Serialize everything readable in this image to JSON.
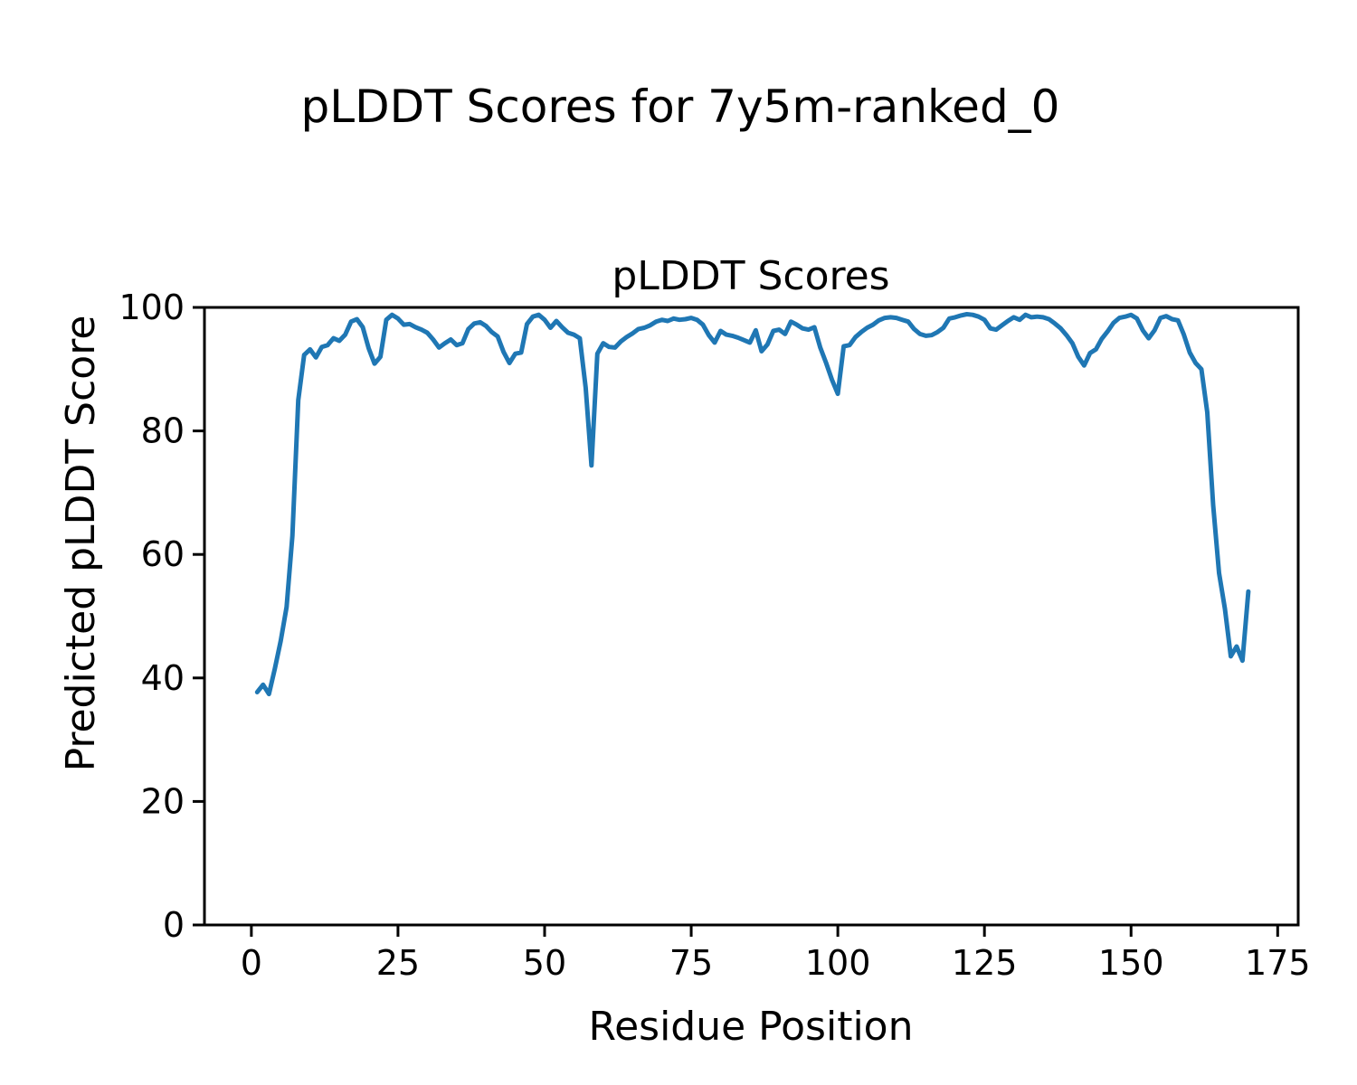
{
  "figure": {
    "suptitle": "pLDDT Scores for 7y5m-ranked_0",
    "background_color": "#ffffff"
  },
  "chart_data": {
    "type": "line",
    "title": "pLDDT Scores",
    "xlabel": "Residue Position",
    "ylabel": "Predicted pLDDT Score",
    "x_tick_labels": [
      0,
      25,
      50,
      75,
      100,
      125,
      150,
      175
    ],
    "y_tick_labels": [
      0,
      20,
      40,
      60,
      80,
      100
    ],
    "xlim": [
      -8,
      178.5
    ],
    "ylim": [
      0,
      100
    ],
    "grid": false,
    "legend": "none",
    "line_color": "#1f77b4",
    "axis_color": "#000000",
    "series": [
      {
        "name": "pLDDT",
        "x_start": 1,
        "x_step": 1,
        "values": [
          37.7,
          38.9,
          37.4,
          41.5,
          46.0,
          51.5,
          63.0,
          85.0,
          92.3,
          93.2,
          91.9,
          93.6,
          93.9,
          95.0,
          94.6,
          95.6,
          97.7,
          98.1,
          96.8,
          93.4,
          90.9,
          92.0,
          98.0,
          98.8,
          98.2,
          97.2,
          97.3,
          96.8,
          96.4,
          95.9,
          94.8,
          93.5,
          94.2,
          94.8,
          93.9,
          94.2,
          96.5,
          97.4,
          97.6,
          97.0,
          96.0,
          95.3,
          92.8,
          91.0,
          92.5,
          92.7,
          97.3,
          98.5,
          98.8,
          98.0,
          96.7,
          97.8,
          96.8,
          95.9,
          95.6,
          95.0,
          87.0,
          74.4,
          92.5,
          94.2,
          93.6,
          93.5,
          94.5,
          95.2,
          95.8,
          96.5,
          96.7,
          97.1,
          97.7,
          98.0,
          97.8,
          98.2,
          98.0,
          98.1,
          98.3,
          98.0,
          97.2,
          95.5,
          94.3,
          96.2,
          95.6,
          95.4,
          95.1,
          94.7,
          94.3,
          96.3,
          92.9,
          94.0,
          96.2,
          96.4,
          95.7,
          97.7,
          97.2,
          96.6,
          96.4,
          96.8,
          93.5,
          91.0,
          88.3,
          86.0,
          93.7,
          93.9,
          95.2,
          96.0,
          96.7,
          97.2,
          97.9,
          98.3,
          98.4,
          98.3,
          98.0,
          97.7,
          96.5,
          95.7,
          95.4,
          95.5,
          96.0,
          96.7,
          98.2,
          98.4,
          98.7,
          98.9,
          98.8,
          98.5,
          98.0,
          96.6,
          96.4,
          97.1,
          97.8,
          98.4,
          98.0,
          98.8,
          98.4,
          98.5,
          98.4,
          98.1,
          97.4,
          96.6,
          95.5,
          94.2,
          92.0,
          90.6,
          92.6,
          93.2,
          94.9,
          96.1,
          97.5,
          98.3,
          98.5,
          98.8,
          98.2,
          96.3,
          95.0,
          96.3,
          98.3,
          98.6,
          98.1,
          97.9,
          95.6,
          92.7,
          91.0,
          90.0,
          83.0,
          68.0,
          57.0,
          51.2,
          43.5,
          45.1,
          42.8,
          54.0
        ]
      }
    ]
  }
}
